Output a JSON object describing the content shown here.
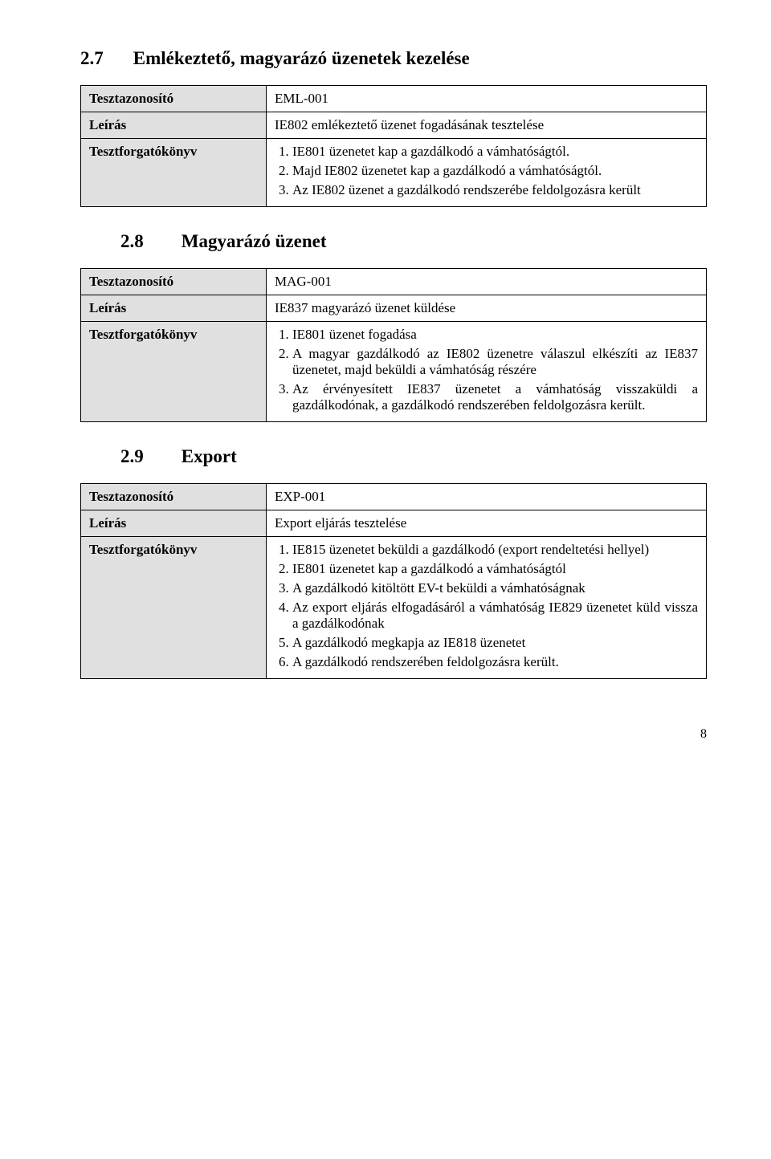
{
  "heading_27": {
    "num": "2.7",
    "title": "Emlékeztető, magyarázó üzenetek kezelése"
  },
  "table1": {
    "row1_label": "Tesztazonosító",
    "row1_value": "EML-001",
    "row2_label": "Leírás",
    "row2_value": "IE802 emlékeztető üzenet fogadásának tesztelése",
    "row3_label": "Tesztforgatókönyv",
    "row3_steps": [
      "IE801 üzenetet kap a gazdálkodó a vámhatóságtól.",
      "Majd IE802 üzenetet kap a gazdálkodó a vámhatóságtól.",
      "Az IE802 üzenet a gazdálkodó rendszerébe feldolgozásra került"
    ]
  },
  "heading_28": {
    "num": "2.8",
    "title": "Magyarázó üzenet"
  },
  "table2": {
    "row1_label": "Tesztazonosító",
    "row1_value": "MAG-001",
    "row2_label": "Leírás",
    "row2_value": "IE837 magyarázó üzenet küldése",
    "row3_label": "Tesztforgatókönyv",
    "row3_steps": [
      "IE801 üzenet fogadása",
      "A magyar gazdálkodó az IE802 üzenetre válaszul elkészíti az IE837 üzenetet, majd beküldi a vámhatóság részére",
      "Az érvényesített IE837 üzenetet a vámhatóság visszaküldi a gazdálkodónak, a gazdálkodó rendszerében feldolgozásra került."
    ]
  },
  "heading_29": {
    "num": "2.9",
    "title": "Export"
  },
  "table3": {
    "row1_label": "Tesztazonosító",
    "row1_value": "EXP-001",
    "row2_label": "Leírás",
    "row2_value": "Export eljárás tesztelése",
    "row3_label": "Tesztforgatókönyv",
    "row3_steps": [
      "IE815 üzenetet beküldi a gazdálkodó (export rendeltetési hellyel)",
      "IE801 üzenetet kap a gazdálkodó a vámhatóságtól",
      "A gazdálkodó kitöltött EV-t beküldi a vámhatóságnak",
      "Az export eljárás elfogadásáról a vámhatóság IE829 üzenetet küld vissza a gazdálkodónak",
      "A gazdálkodó megkapja az IE818 üzenetet",
      "A gazdálkodó rendszerében feldolgozásra került."
    ]
  },
  "page_number": "8"
}
